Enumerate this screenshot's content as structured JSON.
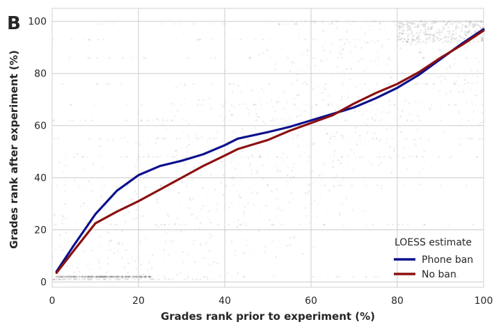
{
  "panel_label": "B",
  "chart_data": {
    "type": "line",
    "title": "",
    "xlabel": "Grades rank prior to experiment (%)",
    "ylabel": "Grades rank after experiment (%)",
    "xlim": [
      0,
      100
    ],
    "ylim": [
      -2,
      105
    ],
    "xticks": [
      0,
      20,
      40,
      60,
      80,
      100
    ],
    "yticks": [
      0,
      20,
      40,
      60,
      80,
      100
    ],
    "grid": true,
    "background_scatter": "dense scatter of individual student ranks (grey, low opacity)",
    "legend": {
      "title": "LOESS estimate",
      "placement": "bottom-right"
    },
    "series": [
      {
        "name": "Phone ban",
        "color": "#0b108c",
        "x": [
          1,
          5,
          10,
          15,
          20,
          25,
          30,
          35,
          40,
          43,
          50,
          55,
          60,
          65,
          70,
          75,
          80,
          85,
          90,
          95,
          100
        ],
        "y": [
          4,
          14,
          26,
          35,
          41,
          44.5,
          46.5,
          49,
          52.5,
          55,
          57.5,
          59.5,
          62,
          64.5,
          67,
          70.5,
          74.5,
          79.5,
          85.5,
          91.5,
          97
        ]
      },
      {
        "name": "No ban",
        "color": "#8b1010",
        "x": [
          1,
          5,
          10,
          15,
          20,
          25,
          30,
          35,
          40,
          43,
          50,
          55,
          60,
          65,
          70,
          75,
          80,
          85,
          90,
          95,
          100
        ],
        "y": [
          3.5,
          12,
          22.5,
          27,
          31,
          35.5,
          40,
          44.5,
          48.5,
          51,
          54.5,
          58,
          61,
          64,
          68.5,
          72.5,
          76,
          80.5,
          86,
          91,
          96.5
        ]
      }
    ]
  }
}
